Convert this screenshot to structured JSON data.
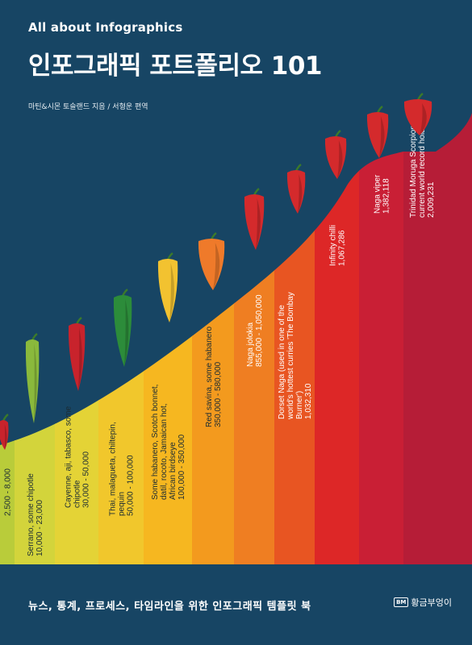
{
  "cover": {
    "series_label": "All about Infographics",
    "title": "인포그래픽 포트폴리오 101",
    "author_line": "마틴&시몬 토슬랜드 지음 / 서형운 편역",
    "subtitle": "뉴스, 통계, 프로세스, 타임라인을 위한 인포그래픽 템플릿 북",
    "publisher_logo": "BM",
    "publisher": "황금부엉이"
  },
  "chart_data": {
    "type": "area",
    "title": "",
    "xlabel": "",
    "ylabel": "",
    "bands": [
      {
        "name": "",
        "range": "2,500 - 8,000",
        "color": "#b9cc3a"
      },
      {
        "name": "Serrano, some chipotle",
        "range": "10,000 - 23,000",
        "color": "#d3d43b"
      },
      {
        "name": "Cayenne, aji, tabasco, some chipotle",
        "range": "30,000 - 50,000",
        "color": "#e4d336"
      },
      {
        "name": "Thai, malagueta, chiltepin, pequin",
        "range": "50,000 - 100,000",
        "color": "#f1c72c"
      },
      {
        "name": "Some habanero, Scotch bonnet, datil, rocoto, Jamaican hot, African birdseye",
        "range": "100,000 - 350,000",
        "color": "#f6b720"
      },
      {
        "name": "Red savina, some habanero",
        "range": "350,000 - 580,000",
        "color": "#f39a1e"
      },
      {
        "name": "Naga jolokia",
        "range": "855,000 - 1,050,000",
        "color": "#ef7e22"
      },
      {
        "name": "Dorset Naga (used in one of the world's hottest curries 'The Bombay Burner')",
        "range": "1,032,310",
        "color": "#e85522"
      },
      {
        "name": "Infinity chilli",
        "range": "1,067,286",
        "color": "#dd2727"
      },
      {
        "name": "Naga viper",
        "range": "1,382,118",
        "color": "#c91f35"
      },
      {
        "name": "Trinidad Moruga Scorpion current world record holder",
        "range": "2,009,231",
        "color": "#b61d37"
      }
    ],
    "pepper_colors": [
      "#c8232c",
      "#8ab93c",
      "#c8232c",
      "#2c8c3a",
      "#f2c230",
      "#ef7a2a",
      "#d42a2c",
      "#d42a2c",
      "#d42a2c",
      "#d42a2c"
    ]
  }
}
